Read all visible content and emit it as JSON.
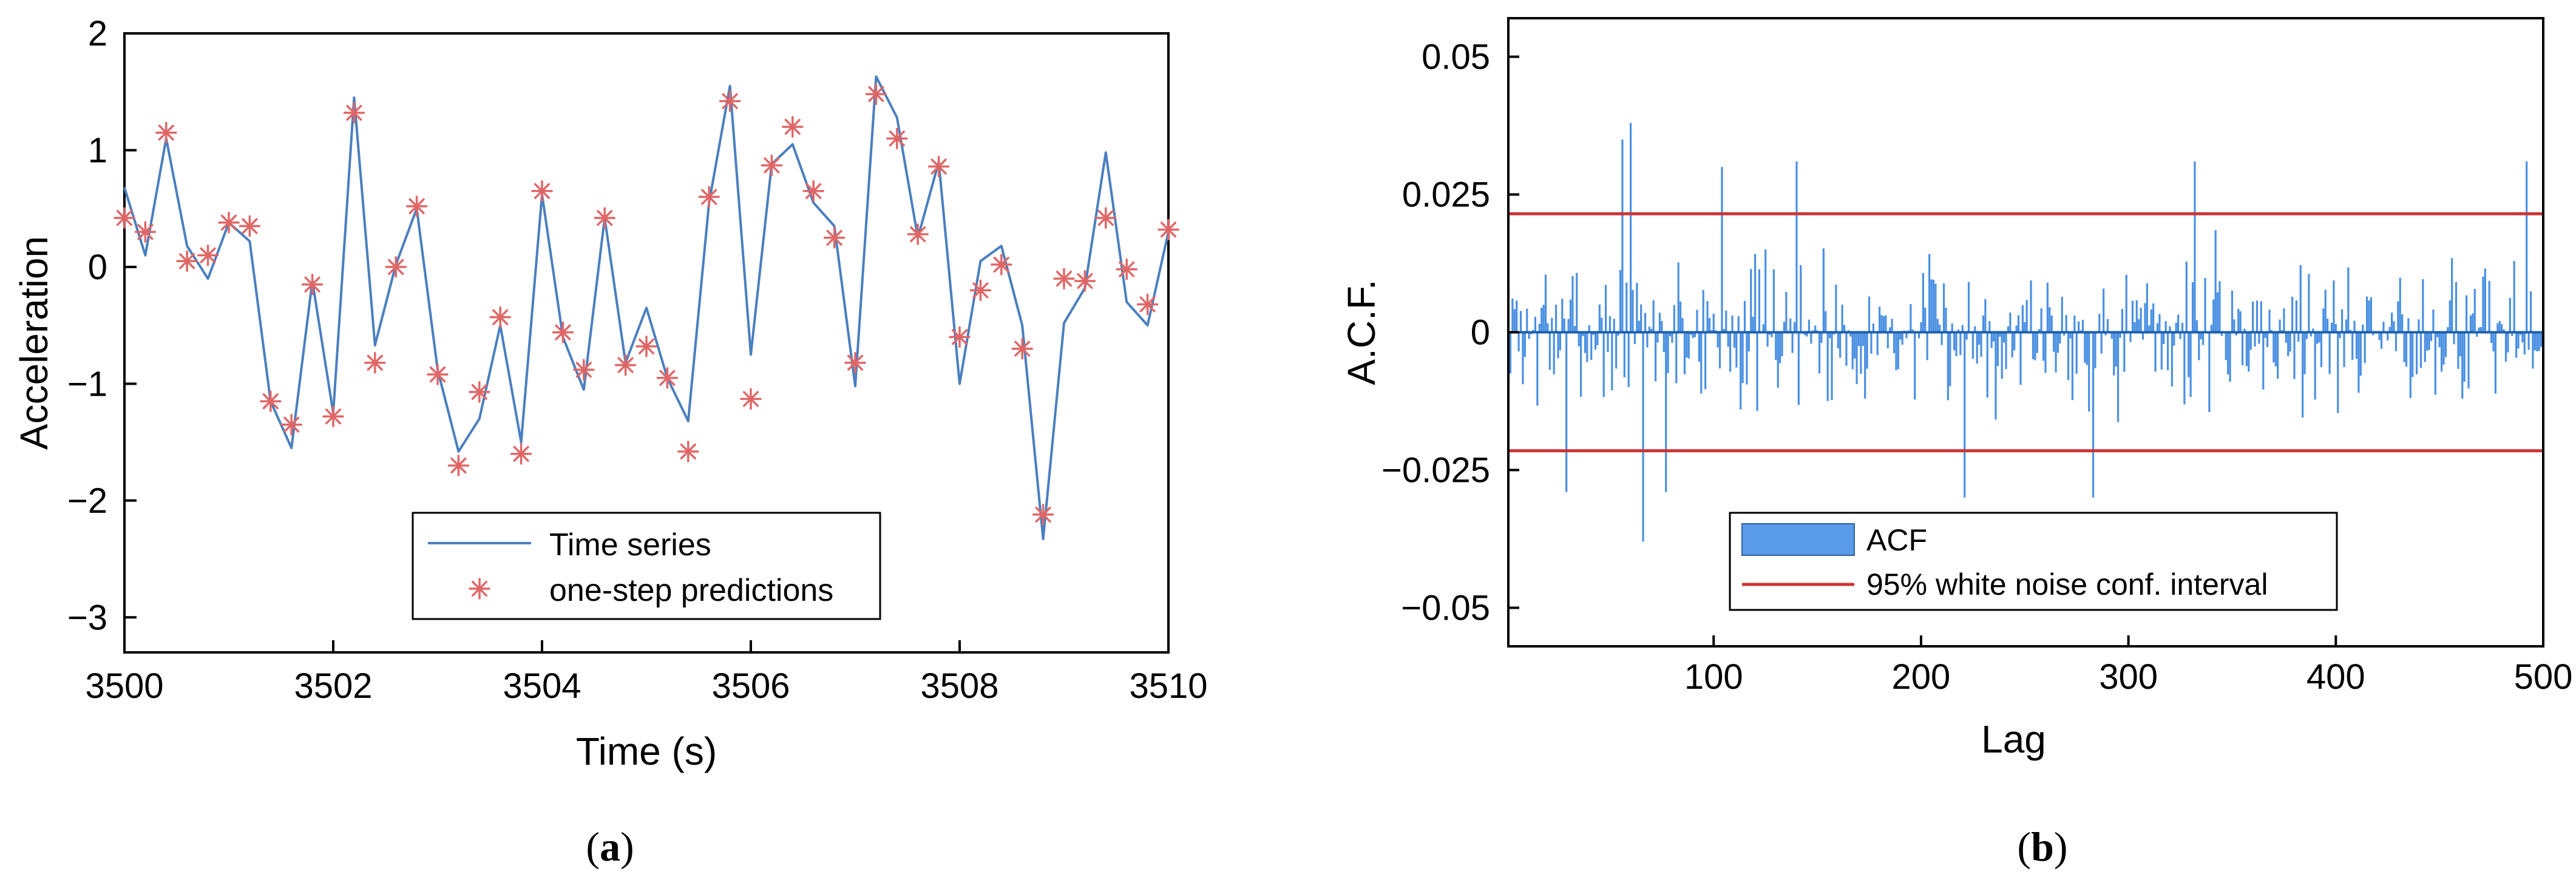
{
  "chart_data": [
    {
      "type": "line",
      "panel_label": {
        "open": "(",
        "letter": "a",
        "close": ")"
      },
      "xlabel": "Time (s)",
      "ylabel": "Acceleration",
      "xlim": [
        3500,
        3510
      ],
      "ylim": [
        -3.3,
        2
      ],
      "xticks": [
        3500,
        3502,
        3504,
        3506,
        3508,
        3510
      ],
      "xtick_labels": [
        "3500",
        "3502",
        "3504",
        "3506",
        "3508",
        "3510"
      ],
      "yticks": [
        2,
        1,
        0,
        -1,
        -2,
        -3
      ],
      "ytick_labels": [
        "2",
        "1",
        "0",
        "−1",
        "−2",
        "−3"
      ],
      "legend_position": "lower-center",
      "colors": {
        "series": "#4a7fbf",
        "predictions": "#e06666",
        "axis": "#000000"
      },
      "series": [
        {
          "name": "Time series",
          "style": "line",
          "x": [
            3500,
            3500.2,
            3500.4,
            3500.6,
            3500.8,
            3501,
            3501.2,
            3501.4,
            3501.6,
            3501.8,
            3502,
            3502.2,
            3502.4,
            3502.6,
            3502.8,
            3503,
            3503.2,
            3503.4,
            3503.6,
            3503.8,
            3504,
            3504.2,
            3504.4,
            3504.6,
            3504.8,
            3505,
            3505.2,
            3505.4,
            3505.6,
            3505.8,
            3506,
            3506.2,
            3506.4,
            3506.6,
            3506.8,
            3507,
            3507.2,
            3507.4,
            3507.6,
            3507.8,
            3508,
            3508.2,
            3508.4,
            3508.6,
            3508.8,
            3509,
            3509.2,
            3509.4,
            3509.6,
            3509.8,
            3510
          ],
          "values": [
            0.68,
            0.1,
            1.1,
            0.18,
            -0.1,
            0.38,
            0.22,
            -1.15,
            -1.55,
            -0.12,
            -1.25,
            1.45,
            -0.67,
            0.02,
            0.5,
            -0.88,
            -1.58,
            -1.3,
            -0.5,
            -1.5,
            0.62,
            -0.6,
            -1.05,
            0.42,
            -0.82,
            -0.35,
            -0.95,
            -1.32,
            0.55,
            1.55,
            -0.75,
            0.88,
            1.05,
            0.55,
            0.35,
            -1.02,
            1.63,
            1.28,
            0.25,
            0.9,
            -1.0,
            0.05,
            0.18,
            -0.5,
            -2.33,
            -0.48,
            -0.18,
            0.98,
            -0.3,
            -0.5,
            0.3
          ]
        },
        {
          "name": "one-step predictions",
          "style": "marker-asterisk",
          "x": [
            3500,
            3500.2,
            3500.4,
            3500.6,
            3500.8,
            3501,
            3501.2,
            3501.4,
            3501.6,
            3501.8,
            3502,
            3502.2,
            3502.4,
            3502.6,
            3502.8,
            3503,
            3503.2,
            3503.4,
            3503.6,
            3503.8,
            3504,
            3504.2,
            3504.4,
            3504.6,
            3504.8,
            3505,
            3505.2,
            3505.4,
            3505.6,
            3505.8,
            3506,
            3506.2,
            3506.4,
            3506.6,
            3506.8,
            3507,
            3507.2,
            3507.4,
            3507.6,
            3507.8,
            3508,
            3508.2,
            3508.4,
            3508.6,
            3508.8,
            3509,
            3509.2,
            3509.4,
            3509.6,
            3509.8,
            3510
          ],
          "values": [
            0.42,
            0.3,
            1.15,
            0.05,
            0.1,
            0.38,
            0.35,
            -1.15,
            -1.35,
            -0.15,
            -1.28,
            1.32,
            -0.82,
            0.0,
            0.52,
            -0.92,
            -1.7,
            -1.07,
            -0.43,
            -1.6,
            0.65,
            -0.56,
            -0.88,
            0.42,
            -0.84,
            -0.68,
            -0.95,
            -1.58,
            0.6,
            1.42,
            -1.13,
            0.87,
            1.2,
            0.65,
            0.25,
            -0.82,
            1.48,
            1.1,
            0.28,
            0.86,
            -0.6,
            -0.2,
            0.02,
            -0.7,
            -2.12,
            -0.1,
            -0.12,
            0.42,
            -0.02,
            -0.32,
            0.32
          ]
        }
      ]
    },
    {
      "type": "bar",
      "panel_label": {
        "open": "(",
        "letter": "b",
        "close": ")"
      },
      "xlabel": "Lag",
      "ylabel": "A.C.F.",
      "xlim": [
        1,
        500
      ],
      "ylim": [
        -0.057,
        0.057
      ],
      "xticks": [
        100,
        200,
        300,
        400,
        500
      ],
      "xtick_labels": [
        "100",
        "200",
        "300",
        "400",
        "500"
      ],
      "yticks": [
        0.05,
        0.025,
        0,
        -0.025,
        -0.05
      ],
      "ytick_labels": [
        "0.05",
        "0.025",
        "0",
        "−0.025",
        "−0.05"
      ],
      "legend_position": "lower-left",
      "confidence_interval": [
        -0.0215,
        0.0215
      ],
      "colors": {
        "acf": "#4a90e2",
        "interval": "#cc3333",
        "legend_patch": "#5a9be8",
        "axis": "#000000"
      },
      "series": [
        {
          "name": "ACF",
          "style": "stem",
          "seed": 7,
          "n_lags": 500,
          "typical_amplitude": 0.01
        },
        {
          "name": "95% white noise conf. interval",
          "style": "hline",
          "values": [
            0.0215,
            -0.0215
          ]
        }
      ],
      "notable_lags": [
        {
          "lag": 56,
          "value": 0.035
        },
        {
          "lag": 60,
          "value": 0.038
        },
        {
          "lag": 104,
          "value": 0.03
        },
        {
          "lag": 140,
          "value": 0.031
        },
        {
          "lag": 332,
          "value": 0.031
        },
        {
          "lag": 492,
          "value": 0.031
        },
        {
          "lag": 29,
          "value": -0.029
        },
        {
          "lag": 66,
          "value": -0.038
        },
        {
          "lag": 77,
          "value": -0.029
        },
        {
          "lag": 221,
          "value": -0.03
        },
        {
          "lag": 283,
          "value": -0.03
        }
      ]
    }
  ]
}
